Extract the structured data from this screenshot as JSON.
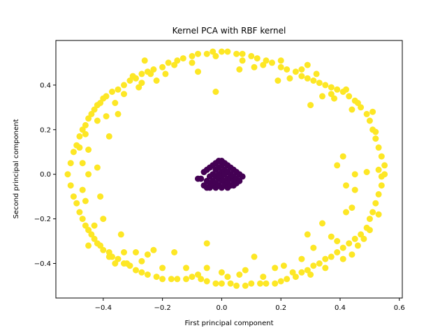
{
  "chart_data": {
    "type": "scatter",
    "title": "Kernel PCA with RBF kernel",
    "xlabel": "First principal component",
    "ylabel": "Second principal component",
    "xlim": [
      -0.56,
      0.61
    ],
    "ylim": [
      -0.555,
      0.6
    ],
    "x_ticks": [
      -0.4,
      -0.2,
      0.0,
      0.2,
      0.4,
      0.6
    ],
    "x_tick_labels": [
      "−0.4",
      "−0.2",
      "0.0",
      "0.2",
      "0.4",
      "0.6"
    ],
    "y_ticks": [
      -0.4,
      -0.2,
      0.0,
      0.2,
      0.4
    ],
    "y_tick_labels": [
      "−0.4",
      "−0.2",
      "0.0",
      "0.2",
      "0.4"
    ],
    "grid": false,
    "legend": "none",
    "colors": {
      "outer": "#fde725",
      "inner": "#440154"
    },
    "series": [
      {
        "class": "outer ring",
        "color": "#fde725",
        "points": [
          [
            -0.52,
            0.0
          ],
          [
            -0.51,
            0.05
          ],
          [
            -0.51,
            -0.05
          ],
          [
            -0.5,
            0.1
          ],
          [
            -0.5,
            -0.1
          ],
          [
            -0.49,
            0.13
          ],
          [
            -0.49,
            -0.13
          ],
          [
            -0.48,
            0.17
          ],
          [
            -0.48,
            -0.17
          ],
          [
            -0.47,
            0.2
          ],
          [
            -0.47,
            -0.2
          ],
          [
            -0.46,
            0.22
          ],
          [
            -0.46,
            -0.23
          ],
          [
            -0.45,
            0.25
          ],
          [
            -0.45,
            -0.25
          ],
          [
            -0.44,
            0.27
          ],
          [
            -0.44,
            -0.27
          ],
          [
            -0.43,
            0.29
          ],
          [
            -0.43,
            -0.29
          ],
          [
            -0.42,
            0.31
          ],
          [
            -0.42,
            -0.31
          ],
          [
            -0.41,
            0.32
          ],
          [
            -0.41,
            -0.32
          ],
          [
            -0.4,
            0.34
          ],
          [
            -0.4,
            -0.34
          ],
          [
            -0.39,
            0.35
          ],
          [
            -0.38,
            -0.35
          ],
          [
            -0.37,
            0.37
          ],
          [
            -0.37,
            -0.37
          ],
          [
            -0.35,
            0.38
          ],
          [
            -0.35,
            -0.38
          ],
          [
            -0.33,
            0.4
          ],
          [
            -0.33,
            -0.4
          ],
          [
            -0.31,
            0.42
          ],
          [
            -0.31,
            -0.41
          ],
          [
            -0.29,
            0.43
          ],
          [
            -0.29,
            -0.43
          ],
          [
            -0.27,
            0.45
          ],
          [
            -0.27,
            -0.44
          ],
          [
            -0.25,
            0.46
          ],
          [
            -0.25,
            -0.45
          ],
          [
            -0.23,
            0.47
          ],
          [
            -0.22,
            -0.46
          ],
          [
            -0.2,
            0.48
          ],
          [
            -0.2,
            -0.47
          ],
          [
            -0.18,
            0.5
          ],
          [
            -0.17,
            -0.47
          ],
          [
            -0.15,
            0.51
          ],
          [
            -0.15,
            -0.47
          ],
          [
            -0.13,
            0.52
          ],
          [
            -0.12,
            -0.47
          ],
          [
            -0.1,
            0.53
          ],
          [
            -0.1,
            -0.46
          ],
          [
            -0.08,
            0.54
          ],
          [
            -0.07,
            -0.47
          ],
          [
            -0.05,
            0.54
          ],
          [
            -0.05,
            -0.48
          ],
          [
            -0.03,
            0.55
          ],
          [
            -0.02,
            -0.49
          ],
          [
            0.0,
            0.55
          ],
          [
            0.0,
            -0.49
          ],
          [
            0.02,
            0.55
          ],
          [
            0.03,
            -0.49
          ],
          [
            0.05,
            0.54
          ],
          [
            0.05,
            -0.5
          ],
          [
            0.07,
            0.54
          ],
          [
            0.08,
            -0.5
          ],
          [
            0.1,
            0.53
          ],
          [
            0.1,
            -0.49
          ],
          [
            0.12,
            0.52
          ],
          [
            0.13,
            -0.49
          ],
          [
            0.15,
            0.51
          ],
          [
            0.15,
            -0.49
          ],
          [
            0.17,
            0.5
          ],
          [
            0.18,
            -0.49
          ],
          [
            0.2,
            0.48
          ],
          [
            0.2,
            -0.48
          ],
          [
            0.22,
            0.47
          ],
          [
            0.22,
            -0.47
          ],
          [
            0.25,
            0.46
          ],
          [
            0.25,
            -0.46
          ],
          [
            0.27,
            0.44
          ],
          [
            0.27,
            -0.44
          ],
          [
            0.29,
            0.43
          ],
          [
            0.29,
            -0.43
          ],
          [
            0.31,
            0.42
          ],
          [
            0.31,
            -0.41
          ],
          [
            0.33,
            0.41
          ],
          [
            0.33,
            -0.4
          ],
          [
            0.35,
            0.4
          ],
          [
            0.35,
            -0.38
          ],
          [
            0.37,
            0.39
          ],
          [
            0.37,
            -0.37
          ],
          [
            0.39,
            0.38
          ],
          [
            0.39,
            -0.35
          ],
          [
            0.41,
            0.37
          ],
          [
            0.41,
            -0.33
          ],
          [
            0.43,
            0.35
          ],
          [
            0.43,
            -0.31
          ],
          [
            0.45,
            0.33
          ],
          [
            0.45,
            -0.29
          ],
          [
            0.47,
            0.3
          ],
          [
            0.47,
            -0.27
          ],
          [
            0.49,
            0.27
          ],
          [
            0.49,
            -0.24
          ],
          [
            0.5,
            0.24
          ],
          [
            0.5,
            -0.2
          ],
          [
            0.51,
            0.2
          ],
          [
            0.51,
            -0.17
          ],
          [
            0.52,
            0.16
          ],
          [
            0.52,
            -0.13
          ],
          [
            0.53,
            0.12
          ],
          [
            0.53,
            -0.09
          ],
          [
            0.54,
            0.08
          ],
          [
            0.54,
            -0.05
          ],
          [
            0.55,
            0.04
          ],
          [
            0.55,
            0.0
          ],
          [
            0.54,
            -0.01
          ],
          [
            0.53,
            0.02
          ],
          [
            -0.02,
            0.37
          ],
          [
            -0.08,
            0.46
          ],
          [
            -0.22,
            0.42
          ],
          [
            -0.35,
            0.27
          ],
          [
            -0.38,
            0.17
          ],
          [
            -0.45,
            0.0
          ],
          [
            -0.42,
            0.03
          ],
          [
            -0.41,
            -0.1
          ],
          [
            -0.4,
            -0.2
          ],
          [
            -0.34,
            -0.27
          ],
          [
            -0.33,
            -0.35
          ],
          [
            -0.32,
            -0.4
          ],
          [
            -0.25,
            -0.36
          ],
          [
            -0.23,
            -0.34
          ],
          [
            -0.16,
            -0.35
          ],
          [
            -0.05,
            -0.31
          ],
          [
            -0.05,
            -0.42
          ],
          [
            0.0,
            -0.44
          ],
          [
            0.08,
            -0.43
          ],
          [
            0.11,
            -0.37
          ],
          [
            0.18,
            -0.42
          ],
          [
            0.21,
            -0.41
          ],
          [
            0.27,
            -0.38
          ],
          [
            0.29,
            -0.27
          ],
          [
            0.31,
            -0.33
          ],
          [
            0.34,
            -0.22
          ],
          [
            0.37,
            -0.28
          ],
          [
            0.39,
            -0.3
          ],
          [
            0.42,
            -0.17
          ],
          [
            0.44,
            -0.15
          ],
          [
            0.42,
            -0.05
          ],
          [
            0.45,
            -0.07
          ],
          [
            0.45,
            0.0
          ],
          [
            0.49,
            0.01
          ],
          [
            0.39,
            0.04
          ],
          [
            0.41,
            0.08
          ],
          [
            0.44,
            0.29
          ],
          [
            0.38,
            0.34
          ],
          [
            0.3,
            0.31
          ],
          [
            0.34,
            0.35
          ],
          [
            0.27,
            0.47
          ],
          [
            0.23,
            0.43
          ],
          [
            0.19,
            0.42
          ],
          [
            0.11,
            0.48
          ],
          [
            0.06,
            0.47
          ],
          [
            -0.28,
            0.39
          ],
          [
            -0.27,
            0.41
          ],
          [
            -0.33,
            0.36
          ],
          [
            -0.39,
            0.26
          ],
          [
            -0.46,
            0.18
          ],
          [
            -0.48,
            0.12
          ],
          [
            -0.45,
            0.11
          ],
          [
            -0.47,
            0.05
          ],
          [
            -0.47,
            -0.07
          ],
          [
            -0.46,
            -0.12
          ],
          [
            -0.43,
            -0.23
          ],
          [
            -0.45,
            -0.32
          ],
          [
            -0.38,
            -0.37
          ],
          [
            -0.36,
            -0.4
          ],
          [
            -0.29,
            -0.35
          ],
          [
            -0.27,
            -0.39
          ],
          [
            -0.2,
            -0.42
          ],
          [
            -0.12,
            -0.42
          ],
          [
            -0.08,
            -0.45
          ],
          [
            0.02,
            -0.46
          ],
          [
            0.06,
            -0.45
          ],
          [
            0.14,
            -0.46
          ],
          [
            0.24,
            -0.44
          ],
          [
            0.3,
            -0.45
          ],
          [
            0.35,
            -0.42
          ],
          [
            0.41,
            -0.38
          ],
          [
            0.44,
            -0.36
          ],
          [
            0.46,
            -0.32
          ],
          [
            0.48,
            -0.29
          ],
          [
            0.5,
            -0.25
          ],
          [
            0.53,
            -0.18
          ],
          [
            0.52,
            0.19
          ],
          [
            0.51,
            0.28
          ],
          [
            0.46,
            0.32
          ],
          [
            0.42,
            0.38
          ],
          [
            0.37,
            0.36
          ],
          [
            0.32,
            0.45
          ],
          [
            0.29,
            0.49
          ],
          [
            0.2,
            0.51
          ],
          [
            0.14,
            0.49
          ],
          [
            0.07,
            0.51
          ],
          [
            -0.02,
            0.53
          ],
          [
            -0.1,
            0.5
          ],
          [
            -0.16,
            0.49
          ],
          [
            -0.19,
            0.45
          ],
          [
            -0.24,
            0.45
          ],
          [
            -0.26,
            0.51
          ],
          [
            -0.3,
            0.44
          ],
          [
            -0.36,
            0.32
          ],
          [
            -0.42,
            0.24
          ]
        ]
      },
      {
        "class": "inner cluster",
        "color": "#440154",
        "points": [
          [
            -0.07,
            -0.02
          ],
          [
            -0.06,
            -0.05
          ],
          [
            -0.06,
            0.01
          ],
          [
            -0.05,
            -0.03
          ],
          [
            -0.05,
            0.02
          ],
          [
            -0.05,
            -0.06
          ],
          [
            -0.04,
            0.03
          ],
          [
            -0.04,
            -0.01
          ],
          [
            -0.04,
            -0.04
          ],
          [
            -0.04,
            -0.06
          ],
          [
            -0.03,
            0.04
          ],
          [
            -0.03,
            0.0
          ],
          [
            -0.03,
            -0.03
          ],
          [
            -0.03,
            -0.05
          ],
          [
            -0.02,
            0.05
          ],
          [
            -0.02,
            0.02
          ],
          [
            -0.02,
            -0.01
          ],
          [
            -0.02,
            -0.04
          ],
          [
            -0.02,
            -0.06
          ],
          [
            -0.01,
            0.06
          ],
          [
            -0.01,
            0.03
          ],
          [
            -0.01,
            0.0
          ],
          [
            -0.01,
            -0.02
          ],
          [
            -0.01,
            -0.05
          ],
          [
            0.0,
            0.04
          ],
          [
            0.0,
            0.01
          ],
          [
            0.0,
            -0.01
          ],
          [
            0.0,
            -0.03
          ],
          [
            0.0,
            -0.06
          ],
          [
            0.01,
            0.05
          ],
          [
            0.01,
            0.02
          ],
          [
            0.01,
            0.0
          ],
          [
            0.01,
            -0.03
          ],
          [
            0.01,
            -0.05
          ],
          [
            0.02,
            0.04
          ],
          [
            0.02,
            0.01
          ],
          [
            0.02,
            -0.02
          ],
          [
            0.02,
            -0.04
          ],
          [
            0.02,
            -0.06
          ],
          [
            0.03,
            0.03
          ],
          [
            0.03,
            0.0
          ],
          [
            0.03,
            -0.02
          ],
          [
            0.03,
            -0.05
          ],
          [
            0.04,
            0.02
          ],
          [
            0.04,
            -0.01
          ],
          [
            0.04,
            -0.03
          ],
          [
            0.04,
            -0.05
          ],
          [
            0.05,
            0.01
          ],
          [
            0.05,
            -0.02
          ],
          [
            0.05,
            -0.04
          ],
          [
            0.06,
            0.0
          ],
          [
            0.06,
            -0.03
          ],
          [
            -0.08,
            -0.02
          ],
          [
            0.07,
            -0.01
          ],
          [
            0.0,
            0.06
          ]
        ]
      }
    ]
  }
}
